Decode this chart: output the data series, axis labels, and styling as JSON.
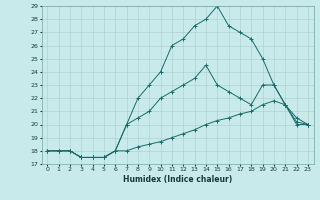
{
  "xlabel": "Humidex (Indice chaleur)",
  "bg_color": "#c8eaea",
  "grid_color": "#a8cccc",
  "line_color": "#1a6b6b",
  "xlim": [
    -0.5,
    23.5
  ],
  "ylim": [
    17,
    29
  ],
  "xticks": [
    0,
    1,
    2,
    3,
    4,
    5,
    6,
    7,
    8,
    9,
    10,
    11,
    12,
    13,
    14,
    15,
    16,
    17,
    18,
    19,
    20,
    21,
    22,
    23
  ],
  "yticks": [
    17,
    18,
    19,
    20,
    21,
    22,
    23,
    24,
    25,
    26,
    27,
    28,
    29
  ],
  "curve1_x": [
    0,
    1,
    2,
    3,
    4,
    5,
    6,
    7,
    8,
    9,
    10,
    11,
    12,
    13,
    14,
    15,
    16,
    17,
    18,
    19,
    20,
    21,
    22,
    23
  ],
  "curve1_y": [
    18,
    18,
    18,
    17.5,
    17.5,
    17.5,
    18,
    18,
    18.3,
    18.5,
    18.7,
    19.0,
    19.3,
    19.6,
    20.0,
    20.3,
    20.5,
    20.8,
    21.0,
    21.5,
    21.8,
    21.5,
    20.2,
    20.0
  ],
  "curve2_x": [
    0,
    1,
    2,
    3,
    4,
    5,
    6,
    7,
    8,
    9,
    10,
    11,
    12,
    13,
    14,
    15,
    16,
    17,
    18,
    19,
    20,
    21,
    22,
    23
  ],
  "curve2_y": [
    18,
    18,
    18,
    17.5,
    17.5,
    17.5,
    18,
    20,
    20.5,
    21.0,
    22.0,
    22.5,
    23.0,
    23.5,
    24.5,
    23.0,
    22.5,
    22.0,
    21.5,
    23.0,
    23.0,
    21.5,
    20.5,
    20.0
  ],
  "curve3_x": [
    0,
    1,
    2,
    3,
    4,
    5,
    6,
    7,
    8,
    9,
    10,
    11,
    12,
    13,
    14,
    15,
    16,
    17,
    18,
    19,
    20,
    21,
    22,
    23
  ],
  "curve3_y": [
    18,
    18,
    18,
    17.5,
    17.5,
    17.5,
    18,
    20,
    22.0,
    23.0,
    24.0,
    26.0,
    26.5,
    27.5,
    28.0,
    29.0,
    27.5,
    27.0,
    26.5,
    25.0,
    23.0,
    21.5,
    20.0,
    20.0
  ]
}
